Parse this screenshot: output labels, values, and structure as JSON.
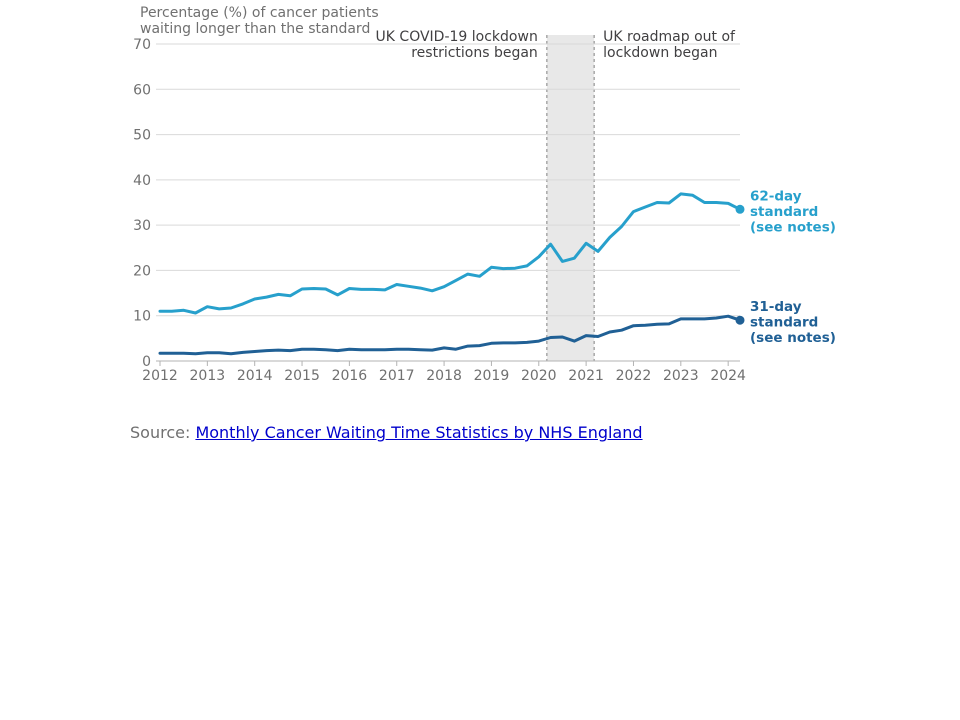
{
  "chart_data": {
    "type": "line",
    "ylabel_lines": [
      "Percentage (%) of cancer patients",
      "waiting longer than the standard"
    ],
    "ylim": [
      0,
      70
    ],
    "yticks": [
      0,
      10,
      20,
      30,
      40,
      50,
      60,
      70
    ],
    "xlim": [
      2012,
      2024.25
    ],
    "xticks": [
      2012,
      2013,
      2014,
      2015,
      2016,
      2017,
      2018,
      2019,
      2020,
      2021,
      2022,
      2023,
      2024
    ],
    "grid": "horizontal",
    "x": [
      2012,
      2012.25,
      2012.5,
      2012.75,
      2013,
      2013.25,
      2013.5,
      2013.75,
      2014,
      2014.25,
      2014.5,
      2014.75,
      2015,
      2015.25,
      2015.5,
      2015.75,
      2016,
      2016.25,
      2016.5,
      2016.75,
      2017,
      2017.25,
      2017.5,
      2017.75,
      2018,
      2018.25,
      2018.5,
      2018.75,
      2019,
      2019.25,
      2019.5,
      2019.75,
      2020,
      2020.25,
      2020.5,
      2020.75,
      2021,
      2021.25,
      2021.5,
      2021.75,
      2022,
      2022.25,
      2022.5,
      2022.75,
      2023,
      2023.25,
      2023.5,
      2023.75,
      2024,
      2024.25
    ],
    "series": [
      {
        "name": "62-day standard (see notes)",
        "label_lines": [
          "62-day",
          "standard",
          "(see notes)"
        ],
        "color": "#27a0cc",
        "values": [
          11.0,
          11.0,
          11.2,
          10.6,
          12.0,
          11.5,
          11.7,
          12.6,
          13.7,
          14.1,
          14.7,
          14.4,
          15.9,
          16.0,
          15.9,
          14.6,
          16.0,
          15.8,
          15.8,
          15.7,
          16.9,
          16.5,
          16.1,
          15.5,
          16.4,
          17.8,
          19.2,
          18.7,
          20.7,
          20.4,
          20.5,
          21.0,
          23.0,
          25.8,
          22.0,
          22.7,
          26.0,
          24.2,
          27.3,
          29.7,
          33.0,
          34.0,
          35.0,
          34.9,
          36.9,
          36.6,
          35.0,
          35.0,
          34.8,
          33.5
        ]
      },
      {
        "name": "31-day standard (see notes)",
        "label_lines": [
          "31-day",
          "standard",
          "(see notes)"
        ],
        "color": "#206095",
        "values": [
          1.7,
          1.7,
          1.7,
          1.6,
          1.8,
          1.8,
          1.6,
          1.9,
          2.1,
          2.3,
          2.4,
          2.3,
          2.6,
          2.6,
          2.5,
          2.3,
          2.6,
          2.5,
          2.5,
          2.5,
          2.6,
          2.6,
          2.5,
          2.4,
          2.9,
          2.6,
          3.3,
          3.4,
          3.9,
          4.0,
          4.0,
          4.1,
          4.4,
          5.2,
          5.3,
          4.4,
          5.6,
          5.4,
          6.4,
          6.8,
          7.8,
          7.9,
          8.1,
          8.2,
          9.3,
          9.3,
          9.3,
          9.5,
          9.9,
          9.0
        ]
      }
    ],
    "shaded_region": {
      "x_start": 2020.17,
      "x_end": 2021.17,
      "color": "#e8e8e8",
      "left_annotation_lines": [
        "UK COVID-19 lockdown",
        "restrictions began"
      ],
      "right_annotation_lines": [
        "UK roadmap out of",
        "lockdown began"
      ]
    }
  },
  "source": {
    "prefix": "Source: ",
    "link_text": "Monthly Cancer Waiting Time Statistics by NHS England"
  }
}
